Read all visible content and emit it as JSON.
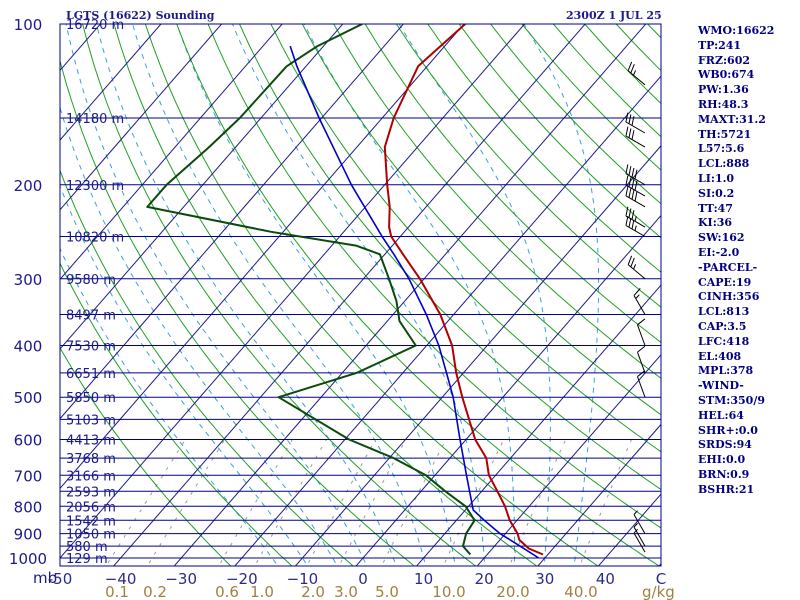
{
  "header": {
    "title": "LGTS (16622) Sounding",
    "time": "2300Z  1 JUL 25"
  },
  "stats": [
    "WMO:16622",
    "TP:241",
    "FRZ:602",
    "WB0:674",
    "PW:1.36",
    "RH:48.3",
    "MAXT:31.2",
    "TH:5721",
    "L57:5.6",
    "LCL:888",
    "LI:1.0",
    "SI:0.2",
    "TT:47",
    "KI:36",
    "SW:162",
    "EI:-2.0",
    "-PARCEL-",
    "CAPE:19",
    "CINH:356",
    "LCL:813",
    "CAP:3.5",
    "LFC:418",
    "EL:408",
    "MPL:378",
    "-WIND-",
    "STM:350/9",
    "HEL:64",
    "SHR+:0.0",
    "SRDS:94",
    "EHI:0.0",
    "BRN:0.9",
    "BSHR:21"
  ],
  "colors": {
    "isobar": "#00008b",
    "isotherm": "#1a1a8a",
    "dry_adiabat": "#22a022",
    "moist_adiabat": "#3aa0e0",
    "mixing_ratio": "#999999",
    "temperature": "#b00000",
    "dewpoint": "#0a4a0a",
    "parcel": "#0000cc",
    "pressure_text": "#1a1a8a",
    "height_text": "#1a1a8a",
    "temp_axis_text": "#2a2a8a",
    "mixing_axis_text": "#a08040"
  },
  "chart_data": {
    "type": "line",
    "title": "LGTS (16622) Sounding",
    "subtitle": "2300Z  1 JUL 25",
    "y_axis": {
      "label": "mb",
      "scale": "log",
      "inverted": true,
      "range": [
        1000,
        100
      ],
      "ticks": [
        100,
        200,
        300,
        400,
        500,
        600,
        700,
        800,
        900,
        1000
      ]
    },
    "x_axis": {
      "ticks": [
        -50,
        -40,
        -30,
        -20,
        -10,
        0,
        10,
        20,
        30,
        40
      ],
      "tick_labels": [
        "-50",
        "−40",
        "−30",
        "−20",
        "−10",
        "0",
        "10",
        "20",
        "30",
        "40"
      ],
      "skewed": true,
      "range": [
        -50,
        50
      ]
    },
    "height_labels": [
      {
        "p": 100,
        "label": "16720 m"
      },
      {
        "p": 150,
        "label": "14180 m"
      },
      {
        "p": 200,
        "label": "12300 m"
      },
      {
        "p": 250,
        "label": "10820 m"
      },
      {
        "p": 300,
        "label": "9580 m"
      },
      {
        "p": 350,
        "label": "8497 m"
      },
      {
        "p": 400,
        "label": "7530 m"
      },
      {
        "p": 450,
        "label": "6651 m"
      },
      {
        "p": 500,
        "label": "5850 m"
      },
      {
        "p": 550,
        "label": "5103 m"
      },
      {
        "p": 600,
        "label": "4413 m"
      },
      {
        "p": 650,
        "label": "3768 m"
      },
      {
        "p": 700,
        "label": "3166 m"
      },
      {
        "p": 750,
        "label": "2593 m"
      },
      {
        "p": 800,
        "label": "2056 m"
      },
      {
        "p": 850,
        "label": "1542 m"
      },
      {
        "p": 900,
        "label": "1050 m"
      },
      {
        "p": 950,
        "label": "580 m"
      },
      {
        "p": 1000,
        "label": "129 m"
      }
    ],
    "mixing_ratio_labels": [
      "0.1",
      "0.2",
      "0.6",
      "1.0",
      "2.0",
      "3.0",
      "5.0",
      "10.0",
      "20.0",
      "40.0"
    ],
    "mixing_ratio_unit": "g/kg",
    "series": [
      {
        "id": "temperature",
        "points": [
          {
            "p": 985,
            "t": 29.2
          },
          {
            "p": 960,
            "t": 26
          },
          {
            "p": 925,
            "t": 23.2
          },
          {
            "p": 900,
            "t": 22
          },
          {
            "p": 850,
            "t": 18.8
          },
          {
            "p": 800,
            "t": 16
          },
          {
            "p": 750,
            "t": 12.6
          },
          {
            "p": 700,
            "t": 8.9
          },
          {
            "p": 650,
            "t": 6
          },
          {
            "p": 600,
            "t": 1.5
          },
          {
            "p": 500,
            "t": -6.7
          },
          {
            "p": 450,
            "t": -11.2
          },
          {
            "p": 400,
            "t": -15.8
          },
          {
            "p": 350,
            "t": -22.2
          },
          {
            "p": 300,
            "t": -30.7
          },
          {
            "p": 270,
            "t": -37
          },
          {
            "p": 250,
            "t": -41.5
          },
          {
            "p": 240,
            "t": -43.2
          },
          {
            "p": 220,
            "t": -46
          },
          {
            "p": 200,
            "t": -49.6
          },
          {
            "p": 170,
            "t": -55.4
          },
          {
            "p": 150,
            "t": -58.1
          },
          {
            "p": 120,
            "t": -61.5
          },
          {
            "p": 100,
            "t": -59.8
          }
        ]
      },
      {
        "id": "dewpoint",
        "points": [
          {
            "p": 985,
            "t": 17.2
          },
          {
            "p": 950,
            "t": 14.8
          },
          {
            "p": 900,
            "t": 13.5
          },
          {
            "p": 850,
            "t": 13
          },
          {
            "p": 800,
            "t": 9.5
          },
          {
            "p": 750,
            "t": 4
          },
          {
            "p": 700,
            "t": -1.5
          },
          {
            "p": 650,
            "t": -9.3
          },
          {
            "p": 600,
            "t": -19.3
          },
          {
            "p": 500,
            "t": -37
          },
          {
            "p": 450,
            "t": -27.6
          },
          {
            "p": 400,
            "t": -21.8
          },
          {
            "p": 360,
            "t": -28
          },
          {
            "p": 330,
            "t": -31.4
          },
          {
            "p": 300,
            "t": -35.8
          },
          {
            "p": 270,
            "t": -40.8
          },
          {
            "p": 260,
            "t": -46
          },
          {
            "p": 245,
            "t": -62
          },
          {
            "p": 220,
            "t": -86
          },
          {
            "p": 200,
            "t": -86
          },
          {
            "p": 170,
            "t": -84.4
          },
          {
            "p": 150,
            "t": -83.5
          },
          {
            "p": 120,
            "t": -83.2
          },
          {
            "p": 110,
            "t": -81
          },
          {
            "p": 100,
            "t": -76.8
          }
        ]
      },
      {
        "id": "parcel",
        "points": [
          {
            "p": 1000,
            "t": 29
          },
          {
            "p": 950,
            "t": 24.2
          },
          {
            "p": 900,
            "t": 19.1
          },
          {
            "p": 850,
            "t": 14.6
          },
          {
            "p": 813,
            "t": 11.3
          },
          {
            "p": 700,
            "t": 5.2
          },
          {
            "p": 600,
            "t": -1
          },
          {
            "p": 500,
            "t": -8.2
          },
          {
            "p": 450,
            "t": -12.8
          },
          {
            "p": 400,
            "t": -18
          },
          {
            "p": 350,
            "t": -24.5
          },
          {
            "p": 300,
            "t": -32.5
          },
          {
            "p": 270,
            "t": -38.5
          },
          {
            "p": 250,
            "t": -43
          },
          {
            "p": 200,
            "t": -55.5
          },
          {
            "p": 150,
            "t": -70.4
          },
          {
            "p": 120,
            "t": -81.5
          },
          {
            "p": 110,
            "t": -85.5
          }
        ]
      }
    ],
    "background": {
      "isotherms_step": 10,
      "dry_adiabats_theta_K": [
        250,
        260,
        270,
        280,
        290,
        300,
        310,
        320,
        330,
        340,
        350,
        360,
        370,
        380,
        390,
        400,
        410,
        420,
        430,
        440,
        450,
        460,
        470,
        480,
        490,
        500,
        510,
        520,
        530,
        540,
        550,
        560,
        570,
        580,
        590,
        600,
        610,
        620,
        630,
        640,
        650,
        660,
        670,
        680,
        690,
        700,
        710
      ],
      "moist_adiabats_tw_C": [
        -15,
        -10,
        -5,
        0,
        5,
        10,
        15,
        20,
        25,
        30,
        35
      ],
      "mixing_ratio_lines_gkg": [
        0.1,
        0.2,
        0.6,
        1.0,
        2.0,
        3.0,
        5.0,
        10.0,
        20.0,
        40.0
      ]
    },
    "wind_barbs": [
      {
        "p": 975,
        "dir": 330,
        "kt": 5
      },
      {
        "p": 950,
        "dir": 330,
        "kt": 5
      },
      {
        "p": 900,
        "dir": 330,
        "kt": 5
      },
      {
        "p": 500,
        "dir": 340,
        "kt": 10
      },
      {
        "p": 450,
        "dir": 340,
        "kt": 10
      },
      {
        "p": 400,
        "dir": 340,
        "kt": 10
      },
      {
        "p": 350,
        "dir": 330,
        "kt": 15
      },
      {
        "p": 300,
        "dir": 310,
        "kt": 25
      },
      {
        "p": 250,
        "dir": 300,
        "kt": 35
      },
      {
        "p": 240,
        "dir": 300,
        "kt": 35
      },
      {
        "p": 220,
        "dir": 300,
        "kt": 40
      },
      {
        "p": 210,
        "dir": 300,
        "kt": 40
      },
      {
        "p": 200,
        "dir": 300,
        "kt": 40
      },
      {
        "p": 170,
        "dir": 300,
        "kt": 30
      },
      {
        "p": 160,
        "dir": 300,
        "kt": 30
      },
      {
        "p": 130,
        "dir": 310,
        "kt": 25
      }
    ]
  }
}
